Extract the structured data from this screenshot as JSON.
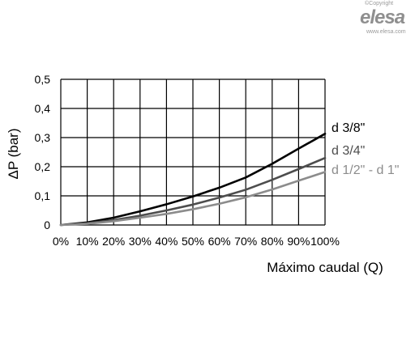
{
  "logo": {
    "copyright": "©Copyright",
    "brand": "elesa",
    "url": "www.elesa.com"
  },
  "chart_data": {
    "type": "line",
    "title": "",
    "xlabel": "Máximo caudal (Q)",
    "ylabel": "ΔP (bar)",
    "xlim": [
      0,
      100
    ],
    "ylim": [
      0,
      0.5
    ],
    "x_ticks": [
      "0%",
      "10%",
      "20%",
      "30%",
      "40%",
      "50%",
      "60%",
      "70%",
      "80%",
      "90%",
      "100%"
    ],
    "y_ticks": [
      "0",
      "0,1",
      "0,2",
      "0,3",
      "0,4",
      "0,5"
    ],
    "grid": true,
    "x": [
      0,
      10,
      20,
      30,
      40,
      50,
      60,
      70,
      80,
      90,
      100
    ],
    "series": [
      {
        "name": "d 3/8\"",
        "color": "#000000",
        "values": [
          0,
          0.009,
          0.025,
          0.047,
          0.071,
          0.098,
          0.128,
          0.163,
          0.21,
          0.262,
          0.313
        ]
      },
      {
        "name": "d 3/4\"",
        "color": "#4d4d4d",
        "values": [
          0,
          0.006,
          0.017,
          0.032,
          0.05,
          0.07,
          0.094,
          0.121,
          0.155,
          0.192,
          0.23
        ]
      },
      {
        "name": "d 1/2\" - d 1\"",
        "color": "#8c8c8c",
        "values": [
          0,
          0.004,
          0.013,
          0.025,
          0.038,
          0.054,
          0.073,
          0.095,
          0.122,
          0.152,
          0.182
        ]
      }
    ]
  }
}
